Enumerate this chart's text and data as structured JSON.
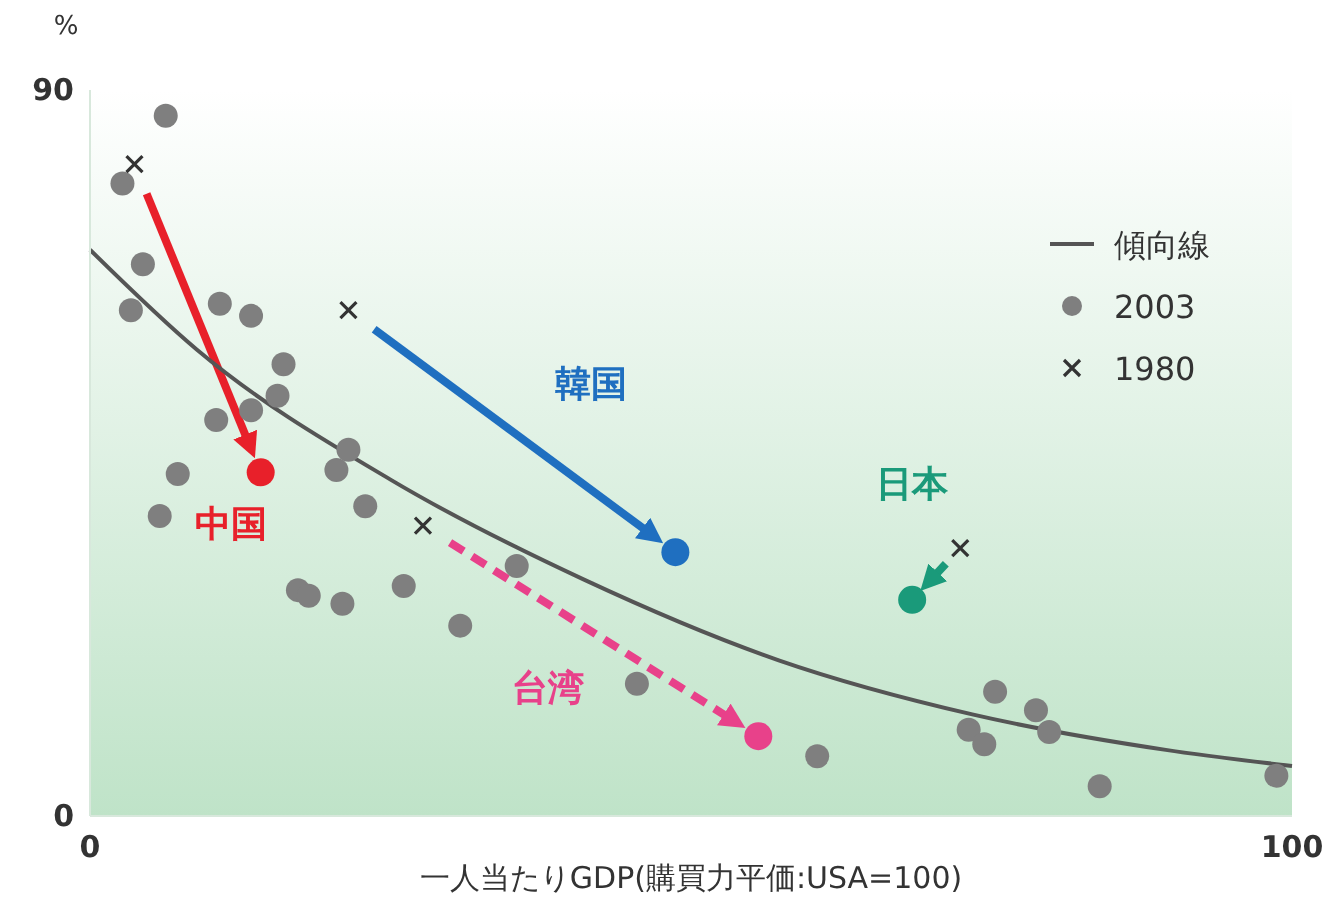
{
  "chart_data": {
    "type": "scatter",
    "xlabel": "一人当たりGDP(購買力平価:USA=100)",
    "ylabel": "%",
    "xlim": [
      0,
      100
    ],
    "ylim": [
      0,
      90
    ],
    "xticks": [
      0,
      100
    ],
    "yticks": [
      0,
      90
    ],
    "grid": false,
    "legend": "top right",
    "series": [
      {
        "type": "line",
        "name": "傾向線",
        "color": "#555555",
        "marker": "none",
        "line_style": "solid",
        "x": [
          0,
          8.9,
          25,
          41.1,
          57.3,
          73.4,
          89.5,
          100
        ],
        "values": [
          70.2,
          57.8,
          41.7,
          29.3,
          19.3,
          12.6,
          8.2,
          6.2
        ]
      },
      {
        "name": "2003",
        "color": "#7f7f7f",
        "marker": "circle",
        "x": [
          2.7,
          6.3,
          4.4,
          3.4,
          5.8,
          7.3,
          10.8,
          13.4,
          10.5,
          13.4,
          16.1,
          15.6,
          17.3,
          18.2,
          21.0,
          20.5,
          21.5,
          22.9,
          26.1,
          30.8,
          35.5,
          45.5,
          60.5,
          73.1,
          74.4,
          75.3,
          78.7,
          79.8,
          84.0,
          98.7
        ],
        "values": [
          78.4,
          86.8,
          68.4,
          62.7,
          37.2,
          42.4,
          63.5,
          62.0,
          49.1,
          50.3,
          56.0,
          52.1,
          28.0,
          27.3,
          26.3,
          42.9,
          45.4,
          38.4,
          28.5,
          23.6,
          31.0,
          16.4,
          7.4,
          10.7,
          8.9,
          15.4,
          13.1,
          10.4,
          3.7,
          5.0
        ]
      },
      {
        "name": "1980",
        "color": "#333333",
        "marker": "cross",
        "x": [
          3.7,
          21.5,
          27.7,
          72.4
        ],
        "values": [
          80.8,
          62.7,
          36.0,
          33.2
        ]
      },
      {
        "name": "中国",
        "color": "#e8202a",
        "marker": "circle",
        "line_style": "solid",
        "x": [
          14.2
        ],
        "values": [
          42.6
        ]
      },
      {
        "name": "韓国",
        "color": "#1f6fc0",
        "marker": "circle",
        "line_style": "solid",
        "x": [
          48.7
        ],
        "values": [
          32.7
        ]
      },
      {
        "name": "台湾",
        "color": "#e8418a",
        "marker": "circle",
        "line_style": "dashed",
        "x": [
          55.6
        ],
        "values": [
          9.9
        ]
      },
      {
        "name": "日本",
        "color": "#1a9a7a",
        "marker": "circle",
        "line_style": "solid",
        "x": [
          68.4
        ],
        "values": [
          26.8
        ]
      }
    ]
  }
}
